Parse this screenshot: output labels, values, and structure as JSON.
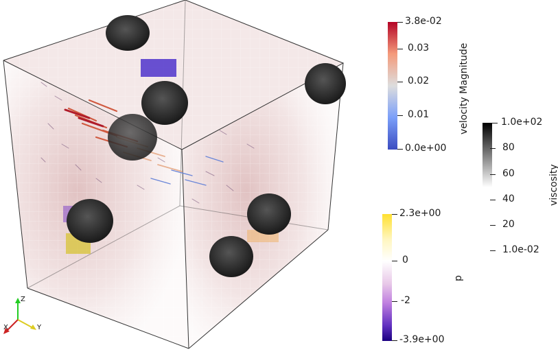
{
  "scene": {
    "colorbars": {
      "velocity": {
        "title": "velocity Magnitude",
        "labels": [
          "3.8e-02",
          "0.03",
          "0.02",
          "0.01",
          "0.0e+00"
        ],
        "colors": [
          "#b40426",
          "#f49a7b",
          "#dddddd",
          "#7b9ff9",
          "#3b4cc0"
        ]
      },
      "viscosity": {
        "title": "viscosity",
        "labels": [
          "1.0e+02",
          "80",
          "60",
          "40",
          "20",
          "1.0e-02"
        ],
        "colors": [
          "#000000",
          "#ffffff"
        ]
      },
      "pressure": {
        "title": "p",
        "labels": [
          "2.3e+00",
          "0",
          "-2",
          "-3.9e+00"
        ],
        "colors": [
          "#ffe030",
          "#ffffff",
          "#c080e0",
          "#1a0080"
        ]
      }
    },
    "axes": {
      "z": "Z",
      "x": "X",
      "y": "Y"
    },
    "colors": {
      "x_axis": "#cc2222",
      "y_axis": "#ddcc22",
      "z_axis": "#22cc22",
      "box_line": "#333333"
    }
  }
}
